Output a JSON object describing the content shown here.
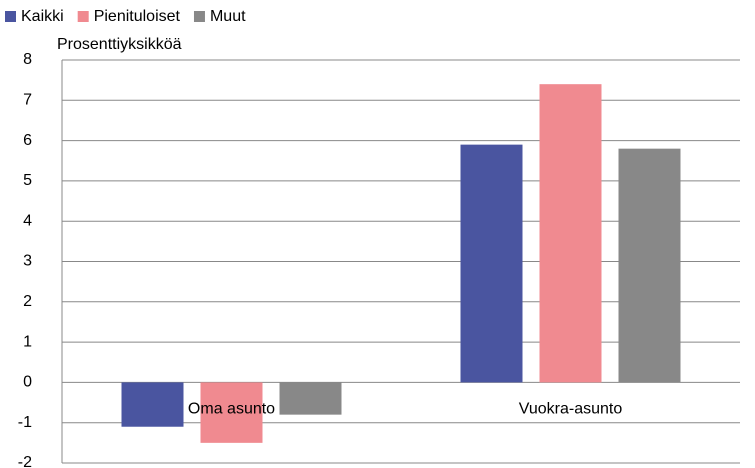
{
  "chart_data": {
    "type": "bar",
    "y_axis_label": "Prosenttiyksikköä",
    "categories": [
      "Oma asunto",
      "Vuokra-asunto"
    ],
    "series": [
      {
        "name": "Kaikki",
        "color": "#4a55a0",
        "values": [
          -1.1,
          5.9
        ]
      },
      {
        "name": "Pienituloiset",
        "color": "#f08a90",
        "values": [
          -1.5,
          7.4
        ]
      },
      {
        "name": "Muut",
        "color": "#888888",
        "values": [
          -0.8,
          5.8
        ]
      }
    ],
    "ylim": [
      -2,
      8
    ],
    "yticks": [
      -2,
      -1,
      0,
      1,
      2,
      3,
      4,
      5,
      6,
      7,
      8
    ],
    "grid": true,
    "legend": "top-left"
  }
}
